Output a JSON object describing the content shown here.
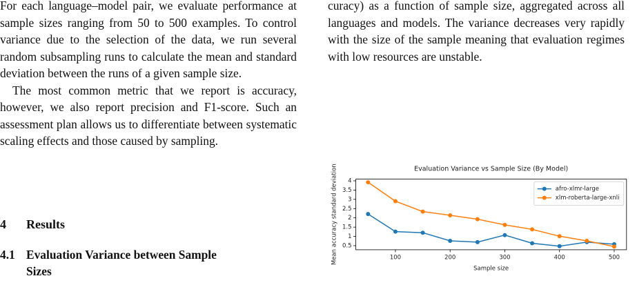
{
  "left_column": {
    "paragraphs": [
      "For each language–model pair, we evaluate performance at sample sizes ranging from 50 to 500 examples. To control variance due to the selection of the data, we run several random subsampling runs to calculate the mean and standard deviation between the runs of a given sample size.",
      "The most common metric that we report is accuracy, however, we also report precision and F1-score. Such an assessment plan allows us to differentiate between systematic scaling effects and those caused by sampling."
    ],
    "section": {
      "number": "4",
      "title": "Results"
    },
    "subsection": {
      "number": "4.1",
      "title": "Evaluation Variance between Sample Sizes"
    }
  },
  "right_column": {
    "paragraph": "curacy) as a function of sample size, aggregated across all languages and models. The variance decreases very rapidly with the size of the sample meaning that evaluation regimes with low resources are unstable."
  },
  "chart_data": {
    "type": "line",
    "title": "Evaluation Variance vs Sample Size (By Model)",
    "x_label": "Sample size",
    "y_label": "Mean accuracy standard deviation",
    "x": [
      50,
      100,
      150,
      200,
      250,
      300,
      350,
      400,
      450,
      500
    ],
    "series": [
      {
        "name": "afro-xlmr-large",
        "color": "#1f77b4",
        "values": [
          2.21,
          1.26,
          1.2,
          0.76,
          0.69,
          1.07,
          0.63,
          0.47,
          0.69,
          0.58
        ]
      },
      {
        "name": "xlm-roberta-large-xnli",
        "color": "#ff7f0e",
        "values": [
          3.92,
          2.9,
          2.34,
          2.14,
          1.93,
          1.62,
          1.38,
          1.01,
          0.76,
          0.45
        ]
      }
    ],
    "xlim": [
      27.5,
      522.5
    ],
    "ylim": [
      0.28,
      4.09
    ],
    "xticks": [
      100,
      200,
      300,
      400,
      500
    ],
    "yticks": [
      0.5,
      1.0,
      1.5,
      2.0,
      2.5,
      3.0,
      3.5,
      4.0
    ],
    "legend": "upper right",
    "grid": false
  }
}
